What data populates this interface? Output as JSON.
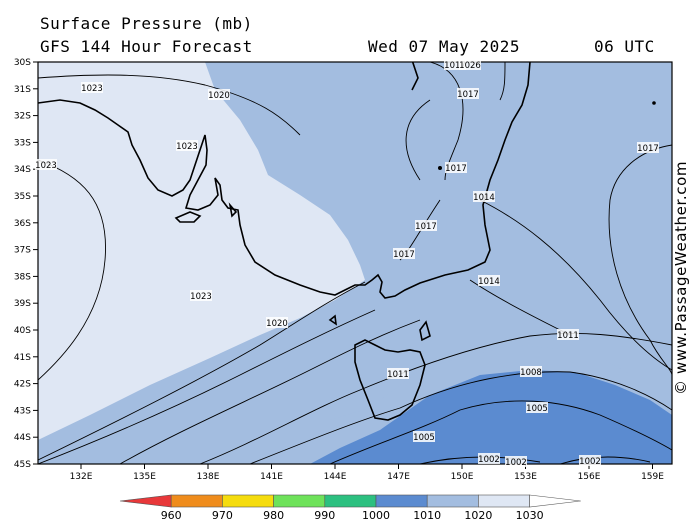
{
  "header": {
    "title": "Surface Pressure (mb)",
    "model": "GFS 144 Hour Forecast",
    "date": "Wed 07 May 2025",
    "time": "06 UTC"
  },
  "credit": "© www.PassageWeather.com",
  "axes": {
    "lat_labels": [
      "30S",
      "31S",
      "32S",
      "33S",
      "34S",
      "35S",
      "36S",
      "37S",
      "38S",
      "39S",
      "40S",
      "41S",
      "42S",
      "43S",
      "44S",
      "45S"
    ],
    "lon_labels": [
      "132E",
      "135E",
      "138E",
      "141E",
      "144E",
      "147E",
      "150E",
      "153E",
      "156E",
      "159E"
    ]
  },
  "colors": {
    "p1010": "#5b8bd0",
    "p1020": "#a3bde0",
    "p1030": "#dfe7f4",
    "coast": "#000000"
  },
  "isobar_labels": [
    {
      "text": "1023",
      "id": "a"
    },
    {
      "text": "1020",
      "id": "b"
    },
    {
      "text": "1023",
      "id": "c"
    },
    {
      "text": "1023",
      "id": "d"
    },
    {
      "text": "1017",
      "id": "e"
    },
    {
      "text": "1017",
      "id": "f"
    },
    {
      "text": "1017",
      "id": "g"
    },
    {
      "text": "1017",
      "id": "h"
    },
    {
      "text": "1014",
      "id": "i"
    },
    {
      "text": "1017",
      "id": "j"
    },
    {
      "text": "1017",
      "id": "k"
    },
    {
      "text": "1014",
      "id": "l"
    },
    {
      "text": "1023",
      "id": "m"
    },
    {
      "text": "1020",
      "id": "n"
    },
    {
      "text": "1011",
      "id": "o"
    },
    {
      "text": "1011",
      "id": "p"
    },
    {
      "text": "1008",
      "id": "q"
    },
    {
      "text": "1005",
      "id": "r"
    },
    {
      "text": "1005",
      "id": "s"
    },
    {
      "text": "1002",
      "id": "t"
    },
    {
      "text": "1002",
      "id": "u"
    },
    {
      "text": "1002",
      "id": "v"
    },
    {
      "text": "1026",
      "id": "w"
    }
  ],
  "legend": {
    "labels": [
      "960",
      "970",
      "980",
      "990",
      "1000",
      "1010",
      "1020",
      "1030"
    ],
    "colors": [
      "#e8383a",
      "#ef8c1c",
      "#f5dc0e",
      "#6ee25a",
      "#2cc080",
      "#5b8bd0",
      "#a3bde0",
      "#dfe7f4",
      "#ffffff"
    ]
  }
}
